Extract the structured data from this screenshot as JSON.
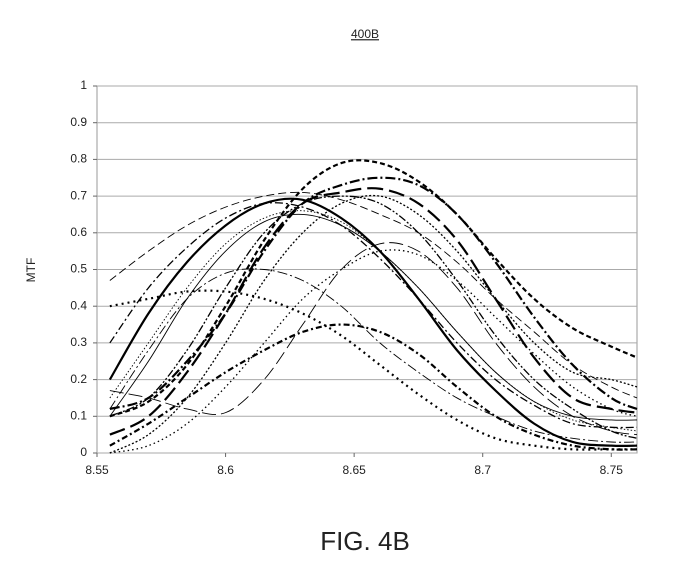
{
  "header": {
    "title": "400B"
  },
  "chart_data": {
    "type": "line",
    "y_label": "MTF",
    "x": [
      8.555,
      8.57,
      8.585,
      8.6,
      8.615,
      8.63,
      8.645,
      8.66,
      8.675,
      8.69,
      8.705,
      8.72,
      8.735,
      8.75,
      8.76
    ],
    "xlim": [
      8.55,
      8.76
    ],
    "xticks": [
      8.55,
      8.6,
      8.65,
      8.7,
      8.75
    ],
    "ylim": [
      0,
      1
    ],
    "yticks": [
      0,
      0.1,
      0.2,
      0.3,
      0.4,
      0.5,
      0.6,
      0.7,
      0.8,
      0.9,
      1
    ],
    "grid": true,
    "series": [
      {
        "color": "#000",
        "width": 2.2,
        "dash": "none",
        "values": [
          0.2,
          0.38,
          0.52,
          0.62,
          0.68,
          0.69,
          0.64,
          0.55,
          0.42,
          0.28,
          0.17,
          0.08,
          0.03,
          0.02,
          0.02
        ]
      },
      {
        "color": "#000",
        "width": 2.2,
        "dash": "5,3",
        "values": [
          0.1,
          0.14,
          0.24,
          0.4,
          0.58,
          0.72,
          0.79,
          0.79,
          0.74,
          0.65,
          0.53,
          0.42,
          0.34,
          0.29,
          0.26
        ]
      },
      {
        "color": "#000",
        "width": 2.2,
        "dash": "10,3,2,3",
        "values": [
          0.12,
          0.15,
          0.25,
          0.38,
          0.55,
          0.68,
          0.73,
          0.75,
          0.73,
          0.65,
          0.52,
          0.37,
          0.24,
          0.15,
          0.12
        ]
      },
      {
        "color": "#000",
        "width": 2.2,
        "dash": "16,6",
        "values": [
          0.05,
          0.1,
          0.22,
          0.38,
          0.56,
          0.68,
          0.71,
          0.72,
          0.68,
          0.58,
          0.42,
          0.26,
          0.15,
          0.12,
          0.11
        ]
      },
      {
        "color": "#000",
        "width": 0.9,
        "dash": "8,4",
        "values": [
          0.47,
          0.55,
          0.62,
          0.67,
          0.7,
          0.71,
          0.69,
          0.65,
          0.6,
          0.52,
          0.42,
          0.33,
          0.24,
          0.18,
          0.15
        ]
      },
      {
        "color": "#000",
        "width": 1.3,
        "dash": "8,3,2,3",
        "values": [
          0.3,
          0.45,
          0.56,
          0.64,
          0.68,
          0.67,
          0.62,
          0.53,
          0.42,
          0.3,
          0.2,
          0.13,
          0.08,
          0.07,
          0.07
        ]
      },
      {
        "color": "#000",
        "width": 2.2,
        "dash": "6,3,2,3",
        "values": [
          0.02,
          0.08,
          0.15,
          0.22,
          0.28,
          0.33,
          0.35,
          0.33,
          0.27,
          0.18,
          0.1,
          0.05,
          0.02,
          0.01,
          0.01
        ]
      },
      {
        "color": "#000",
        "width": 2.2,
        "dash": "2,4",
        "values": [
          0.4,
          0.42,
          0.44,
          0.44,
          0.42,
          0.38,
          0.32,
          0.24,
          0.16,
          0.09,
          0.04,
          0.02,
          0.01,
          0.01,
          0.01
        ]
      },
      {
        "color": "#000",
        "width": 0.9,
        "dash": "10,3,2,3",
        "values": [
          0.12,
          0.28,
          0.42,
          0.49,
          0.5,
          0.47,
          0.4,
          0.3,
          0.22,
          0.15,
          0.1,
          0.06,
          0.04,
          0.03,
          0.03
        ]
      },
      {
        "color": "#000",
        "width": 0.9,
        "dash": "14,5",
        "values": [
          0.17,
          0.15,
          0.12,
          0.11,
          0.2,
          0.35,
          0.5,
          0.57,
          0.55,
          0.45,
          0.3,
          0.18,
          0.1,
          0.06,
          0.05
        ]
      },
      {
        "color": "#000",
        "width": 1.3,
        "dash": "1.5,3",
        "values": [
          0,
          0.02,
          0.08,
          0.18,
          0.3,
          0.42,
          0.5,
          0.55,
          0.54,
          0.47,
          0.37,
          0.27,
          0.18,
          0.12,
          0.1
        ]
      },
      {
        "color": "#000",
        "width": 0.9,
        "dash": "1.5,2",
        "values": [
          0.15,
          0.3,
          0.45,
          0.57,
          0.64,
          0.66,
          0.63,
          0.55,
          0.45,
          0.33,
          0.22,
          0.14,
          0.09,
          0.07,
          0.06
        ]
      },
      {
        "color": "#000",
        "width": 1.3,
        "dash": "2,2",
        "values": [
          0,
          0.05,
          0.15,
          0.3,
          0.47,
          0.6,
          0.68,
          0.7,
          0.65,
          0.55,
          0.42,
          0.3,
          0.22,
          0.2,
          0.18
        ]
      },
      {
        "color": "#000",
        "width": 0.9,
        "dash": "none",
        "values": [
          0.1,
          0.25,
          0.42,
          0.55,
          0.63,
          0.65,
          0.62,
          0.55,
          0.45,
          0.33,
          0.22,
          0.14,
          0.1,
          0.09,
          0.09
        ]
      },
      {
        "color": "#000",
        "width": 1.3,
        "dash": "8,2,2,2,2,2",
        "values": [
          0.1,
          0.15,
          0.28,
          0.45,
          0.6,
          0.68,
          0.7,
          0.68,
          0.6,
          0.47,
          0.32,
          0.2,
          0.12,
          0.06,
          0.04
        ]
      }
    ]
  },
  "caption": "FIG. 4B"
}
